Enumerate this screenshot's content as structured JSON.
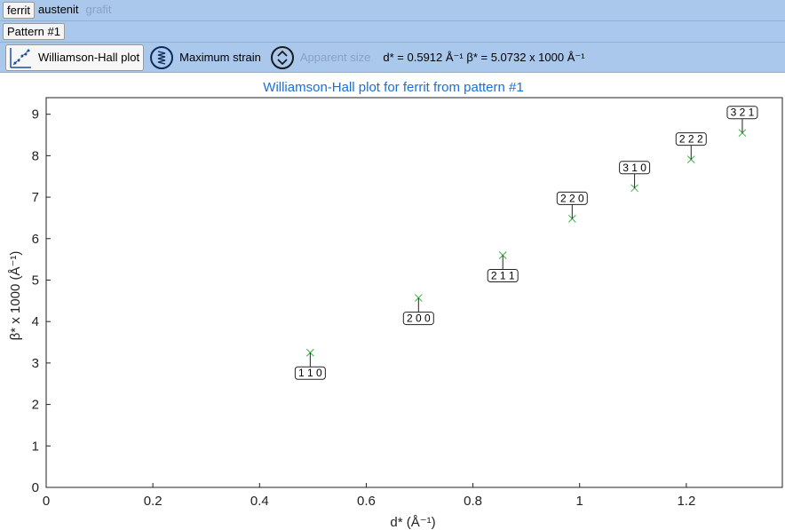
{
  "phase_tabs": [
    {
      "label": "ferrit",
      "state": "selected"
    },
    {
      "label": "austenit",
      "state": "normal"
    },
    {
      "label": "grafit",
      "state": "disabled"
    }
  ],
  "pattern_tabs": [
    {
      "label": "Pattern #1",
      "state": "selected"
    }
  ],
  "toolbar": {
    "williamson_hall_label": "Williamson-Hall plot",
    "maximum_strain_label": "Maximum strain",
    "apparent_size_label": "Apparent size",
    "readout": "d* = 0.5912 Å⁻¹ β* = 5.0732 x 1000 Å⁻¹"
  },
  "colors": {
    "toolbar_bg": "#a9c8ec",
    "title_color": "#1a6fd6",
    "marker_color": "#3cb043"
  },
  "chart_data": {
    "type": "scatter",
    "title": "Williamson-Hall plot for ferrit from pattern #1",
    "xlabel": "d* (Å⁻¹)",
    "ylabel": "β* x 1000 (Å⁻¹)",
    "xlim": [
      0,
      1.38
    ],
    "ylim": [
      0,
      9.4
    ],
    "xticks": [
      "0",
      "0.2",
      "0.4",
      "0.6",
      "0.8",
      "1",
      "1.2"
    ],
    "xtick_values": [
      0,
      0.2,
      0.4,
      0.6,
      0.8,
      1.0,
      1.2
    ],
    "yticks": [
      "0",
      "1",
      "2",
      "3",
      "4",
      "5",
      "6",
      "7",
      "8",
      "9"
    ],
    "ytick_values": [
      0,
      1,
      2,
      3,
      4,
      5,
      6,
      7,
      8,
      9
    ],
    "grid": false,
    "points": [
      {
        "x": 0.495,
        "y": 3.25,
        "label": "1 1 0",
        "label_pos": "below"
      },
      {
        "x": 0.698,
        "y": 4.57,
        "label": "2 0 0",
        "label_pos": "below"
      },
      {
        "x": 0.856,
        "y": 5.6,
        "label": "2 1 1",
        "label_pos": "below"
      },
      {
        "x": 0.986,
        "y": 6.48,
        "label": "2 2 0",
        "label_pos": "above"
      },
      {
        "x": 1.103,
        "y": 7.22,
        "label": "3 1 0",
        "label_pos": "above"
      },
      {
        "x": 1.209,
        "y": 7.91,
        "label": "2 2 2",
        "label_pos": "above"
      },
      {
        "x": 1.305,
        "y": 8.55,
        "label": "3 2 1",
        "label_pos": "above"
      }
    ]
  }
}
